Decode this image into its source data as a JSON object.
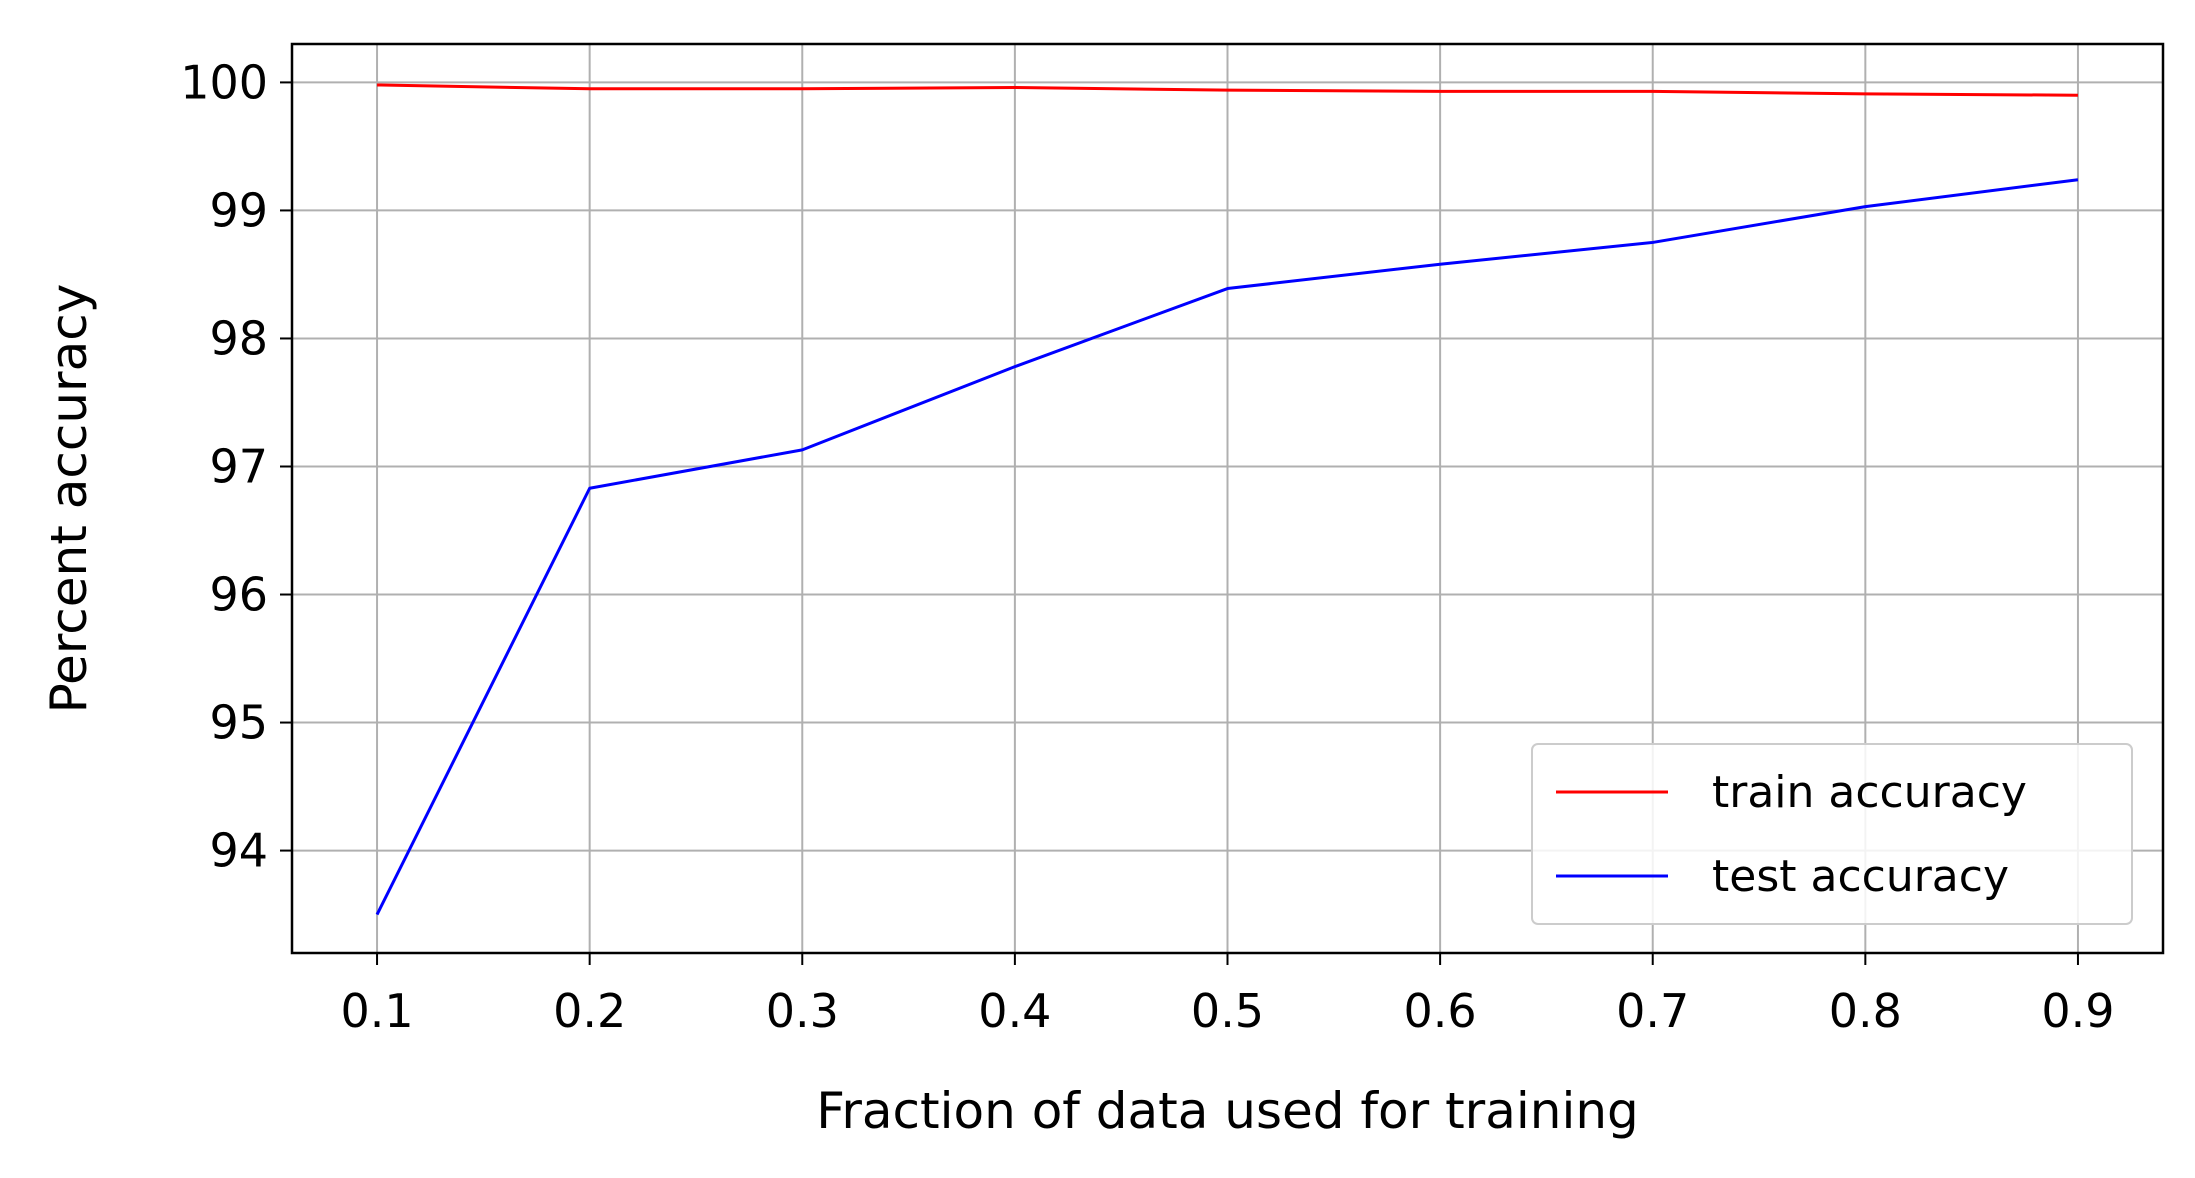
{
  "chart_data": {
    "type": "line",
    "title": "",
    "xlabel": "Fraction of data used for training",
    "ylabel": "Percent accuracy",
    "x": [
      0.1,
      0.2,
      0.3,
      0.4,
      0.5,
      0.6,
      0.7,
      0.8,
      0.9
    ],
    "xlim": [
      0.06,
      0.94
    ],
    "ylim": [
      93.2,
      100.3
    ],
    "xticks": [
      "0.1",
      "0.2",
      "0.3",
      "0.4",
      "0.5",
      "0.6",
      "0.7",
      "0.8",
      "0.9"
    ],
    "yticks": [
      "94",
      "95",
      "96",
      "97",
      "98",
      "99",
      "100"
    ],
    "grid": true,
    "legend_position": "lower-right",
    "series": [
      {
        "name": "train accuracy",
        "color": "#ff0000",
        "values": [
          99.98,
          99.95,
          99.95,
          99.96,
          99.94,
          99.93,
          99.93,
          99.91,
          99.9
        ]
      },
      {
        "name": "test accuracy",
        "color": "#0000ff",
        "values": [
          93.5,
          96.83,
          97.13,
          97.78,
          98.39,
          98.58,
          98.75,
          99.03,
          99.24
        ]
      }
    ]
  }
}
